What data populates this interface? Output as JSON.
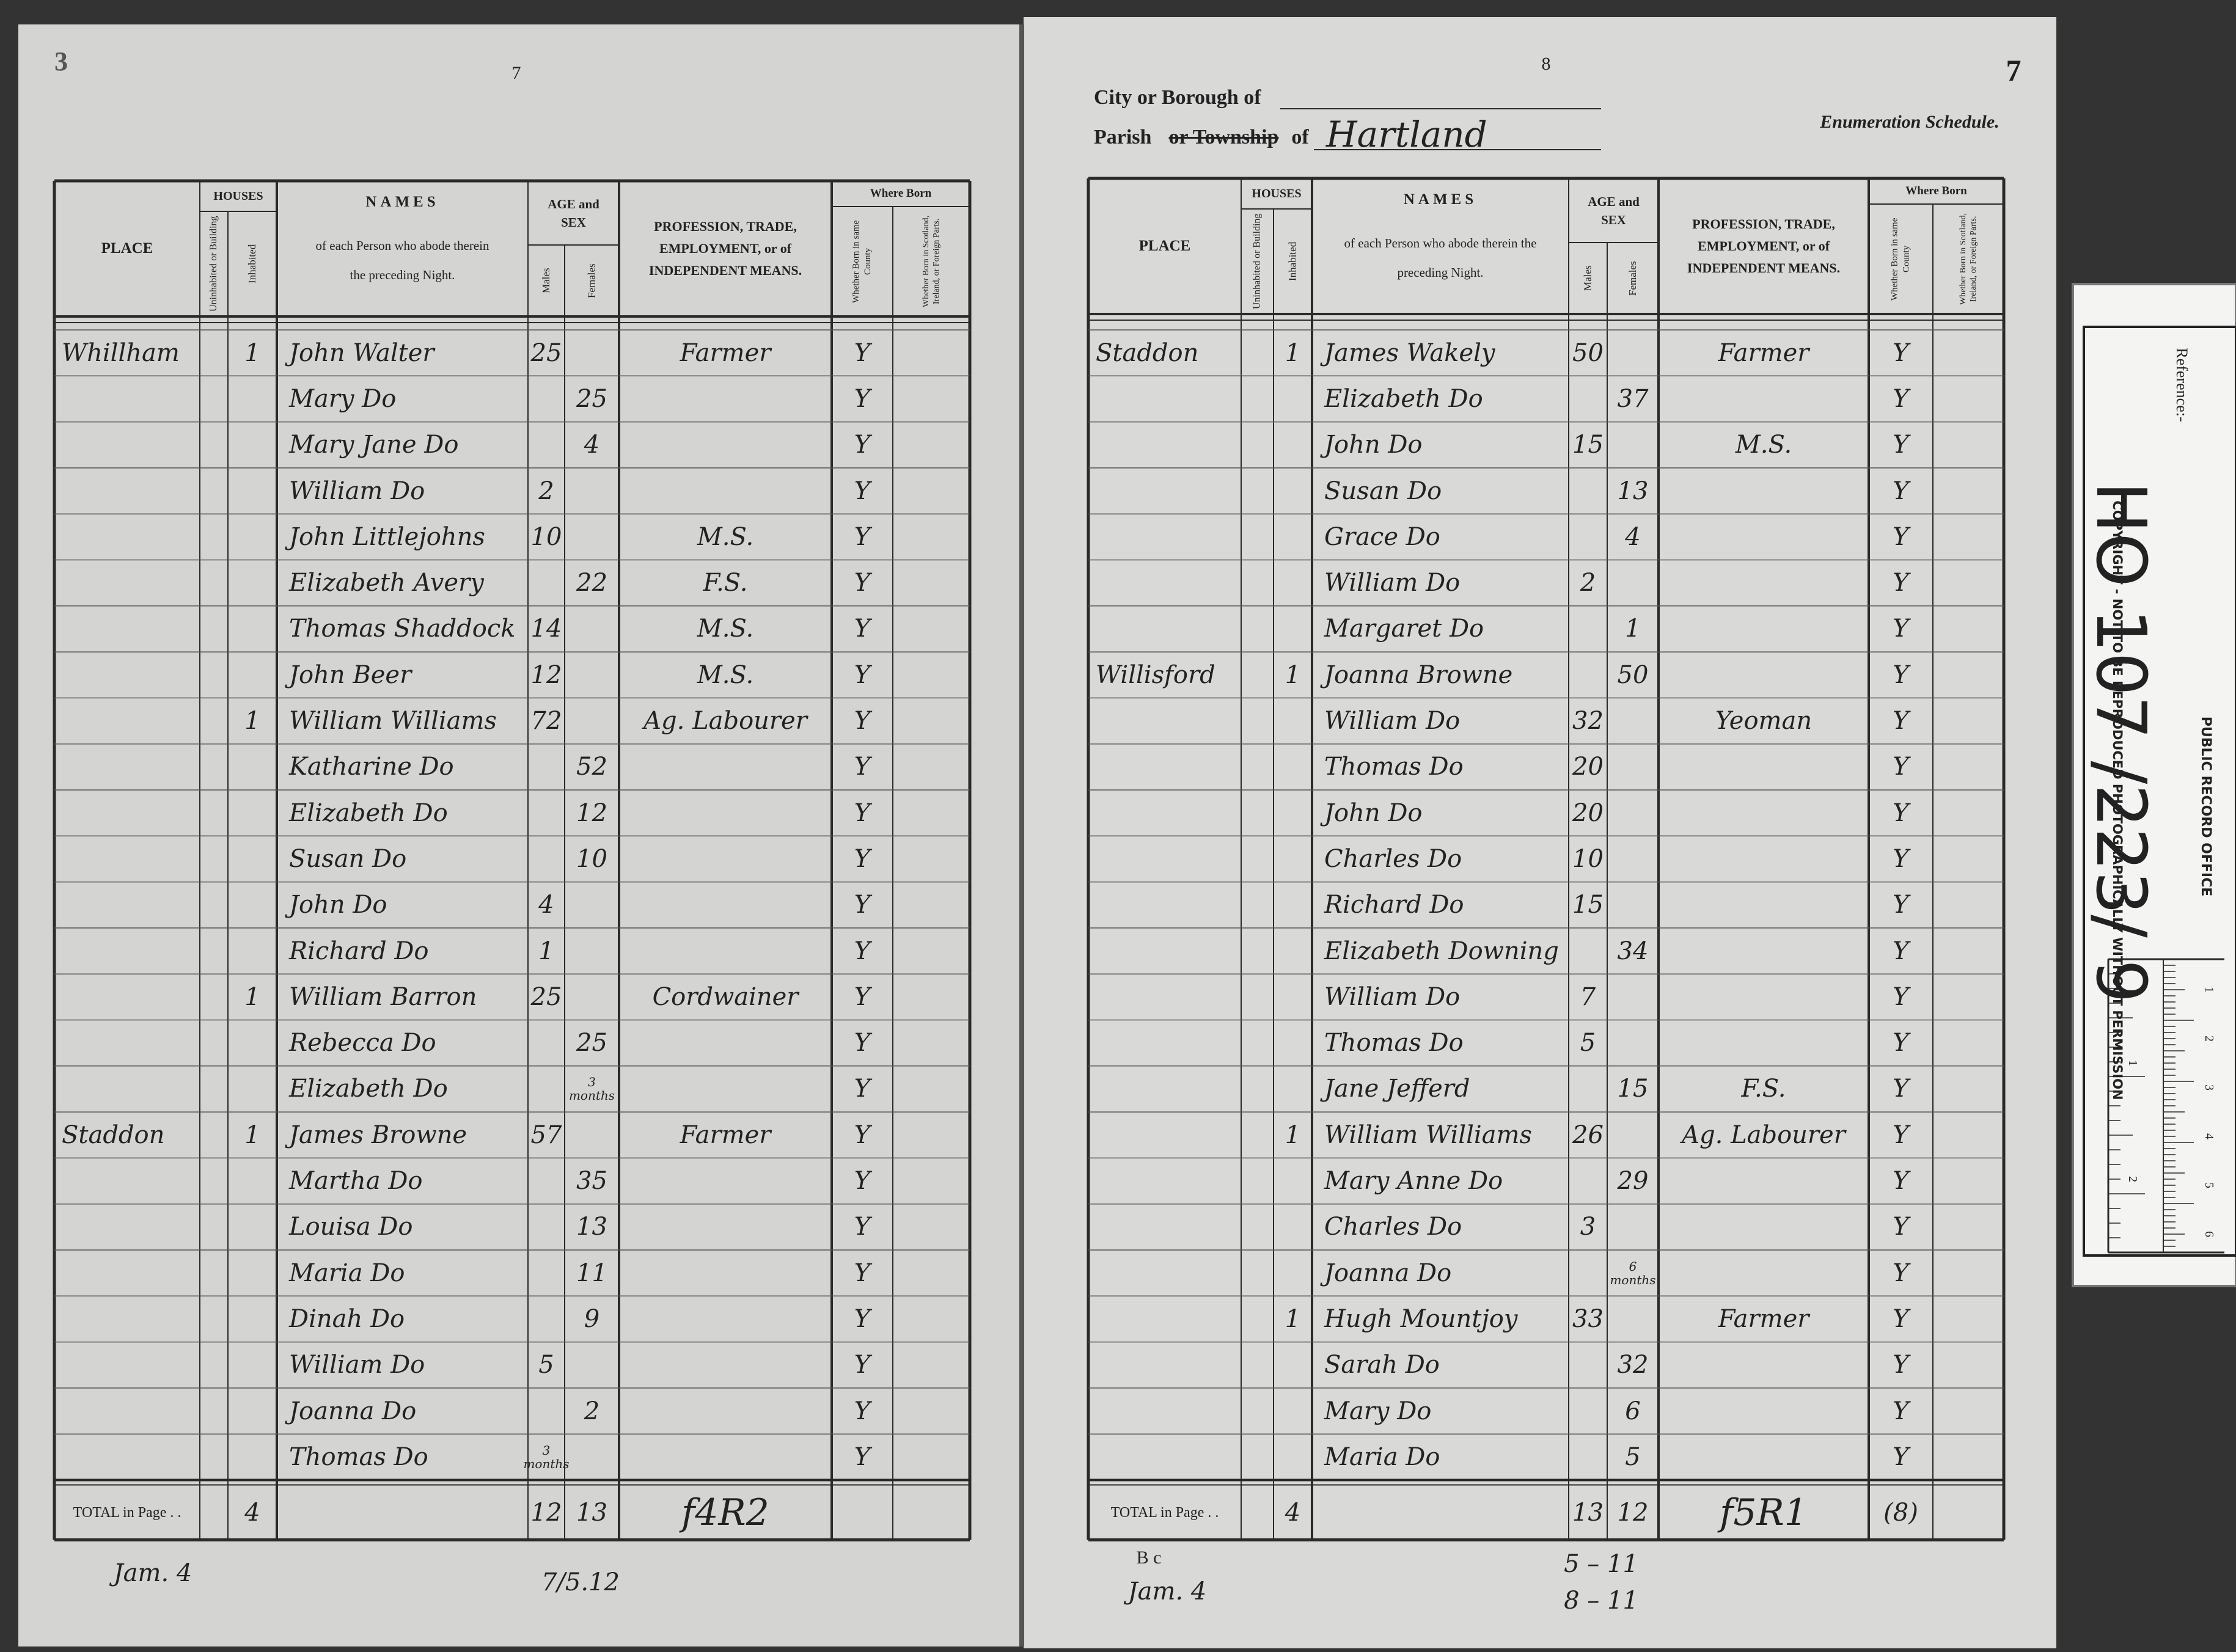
{
  "column_headers": {
    "place": "PLACE",
    "houses": "HOUSES",
    "uninhabited": "Uninhabited or Building",
    "inhabited": "Inhabited",
    "names": "NAMES",
    "names_sub": "of each Person who abode therein the preceding Night.",
    "age_sex": "AGE and SEX",
    "males": "Males",
    "females": "Females",
    "profession": "PROFESSION, TRADE, EMPLOYMENT, or of INDEPENDENT MEANS.",
    "where_born": "Where Born",
    "same_county": "Whether Born in same County",
    "foreign": "Whether Born in Scotland, Ireland, or Foreign Parts."
  },
  "total_label": "TOTAL in Page . .",
  "left_page": {
    "corner_number": "3",
    "page_number": "7",
    "rows": [
      [
        "Whillham",
        null,
        "1",
        "John Walter",
        "25",
        null,
        "Farmer",
        "Y",
        null
      ],
      [
        null,
        null,
        null,
        "Mary Do",
        null,
        "25",
        null,
        "Y",
        null
      ],
      [
        null,
        null,
        null,
        "Mary Jane Do",
        null,
        "4",
        null,
        "Y",
        null
      ],
      [
        null,
        null,
        null,
        "William Do",
        "2",
        null,
        null,
        "Y",
        null
      ],
      [
        null,
        null,
        null,
        "John Littlejohns",
        "10",
        null,
        "M.S.",
        "Y",
        null
      ],
      [
        null,
        null,
        null,
        "Elizabeth Avery",
        null,
        "22",
        "F.S.",
        "Y",
        null
      ],
      [
        null,
        null,
        null,
        "Thomas Shaddock",
        "14",
        null,
        "M.S.",
        "Y",
        null
      ],
      [
        null,
        null,
        null,
        "John Beer",
        "12",
        null,
        "M.S.",
        "Y",
        null
      ],
      [
        null,
        null,
        "1",
        "William Williams",
        "72",
        null,
        "Ag. Labourer",
        "Y",
        null
      ],
      [
        null,
        null,
        null,
        "Katharine Do",
        null,
        "52",
        null,
        "Y",
        null
      ],
      [
        null,
        null,
        null,
        "Elizabeth Do",
        null,
        "12",
        null,
        "Y",
        null
      ],
      [
        null,
        null,
        null,
        "Susan Do",
        null,
        "10",
        null,
        "Y",
        null
      ],
      [
        null,
        null,
        null,
        "John Do",
        "4",
        null,
        null,
        "Y",
        null
      ],
      [
        null,
        null,
        null,
        "Richard Do",
        "1",
        null,
        null,
        "Y",
        null
      ],
      [
        null,
        null,
        "1",
        "William Barron",
        "25",
        null,
        "Cordwainer",
        "Y",
        null
      ],
      [
        null,
        null,
        null,
        "Rebecca Do",
        null,
        "25",
        null,
        "Y",
        null
      ],
      [
        null,
        null,
        null,
        "Elizabeth Do",
        null,
        "3 months",
        null,
        "Y",
        null
      ],
      [
        "Staddon",
        null,
        "1",
        "James Browne",
        "57",
        null,
        "Farmer",
        "Y",
        null
      ],
      [
        null,
        null,
        null,
        "Martha Do",
        null,
        "35",
        null,
        "Y",
        null
      ],
      [
        null,
        null,
        null,
        "Louisa Do",
        null,
        "13",
        null,
        "Y",
        null
      ],
      [
        null,
        null,
        null,
        "Maria Do",
        null,
        "11",
        null,
        "Y",
        null
      ],
      [
        null,
        null,
        null,
        "Dinah Do",
        null,
        "9",
        null,
        "Y",
        null
      ],
      [
        null,
        null,
        null,
        "William Do",
        "5",
        null,
        null,
        "Y",
        null
      ],
      [
        null,
        null,
        null,
        "Joanna Do",
        null,
        "2",
        null,
        "Y",
        null
      ],
      [
        null,
        null,
        null,
        "Thomas Do",
        "3 months",
        null,
        null,
        "Y",
        null
      ]
    ],
    "total": {
      "inhabited": "4",
      "males": "12",
      "females": "13",
      "note": "f4R2"
    },
    "footer": {
      "left": "Jam. 4",
      "middle": "7/5.12"
    }
  },
  "right_page": {
    "page_number": "8",
    "corner_number": "7",
    "header": {
      "city_label": "City or Borough of",
      "parish_word": "Parish",
      "struck": "or Township",
      "of_word": "of",
      "parish_name": "Hartland",
      "schedule": "Enumeration Schedule."
    },
    "rows": [
      [
        "Staddon",
        null,
        "1",
        "James Wakely",
        "50",
        null,
        "Farmer",
        "Y",
        null
      ],
      [
        null,
        null,
        null,
        "Elizabeth Do",
        null,
        "37",
        null,
        "Y",
        null
      ],
      [
        null,
        null,
        null,
        "John Do",
        "15",
        null,
        "M.S.",
        "Y",
        null
      ],
      [
        null,
        null,
        null,
        "Susan Do",
        null,
        "13",
        null,
        "Y",
        null
      ],
      [
        null,
        null,
        null,
        "Grace Do",
        null,
        "4",
        null,
        "Y",
        null
      ],
      [
        null,
        null,
        null,
        "William Do",
        "2",
        null,
        null,
        "Y",
        null
      ],
      [
        null,
        null,
        null,
        "Margaret Do",
        null,
        "1",
        null,
        "Y",
        null
      ],
      [
        "Willisford",
        null,
        "1",
        "Joanna Browne",
        null,
        "50",
        null,
        "Y",
        null
      ],
      [
        null,
        null,
        null,
        "William Do",
        "32",
        null,
        "Yeoman",
        "Y",
        null
      ],
      [
        null,
        null,
        null,
        "Thomas Do",
        "20",
        null,
        null,
        "Y",
        null
      ],
      [
        null,
        null,
        null,
        "John Do",
        "20",
        null,
        null,
        "Y",
        null
      ],
      [
        null,
        null,
        null,
        "Charles Do",
        "10",
        null,
        null,
        "Y",
        null
      ],
      [
        null,
        null,
        null,
        "Richard Do",
        "15",
        null,
        null,
        "Y",
        null
      ],
      [
        null,
        null,
        null,
        "Elizabeth Downing",
        null,
        "34",
        null,
        "Y",
        null
      ],
      [
        null,
        null,
        null,
        "William Do",
        "7",
        null,
        null,
        "Y",
        null
      ],
      [
        null,
        null,
        null,
        "Thomas Do",
        "5",
        null,
        null,
        "Y",
        null
      ],
      [
        null,
        null,
        null,
        "Jane Jefferd",
        null,
        "15",
        "F.S.",
        "Y",
        null
      ],
      [
        null,
        null,
        "1",
        "William Williams",
        "26",
        null,
        "Ag. Labourer",
        "Y",
        null
      ],
      [
        null,
        null,
        null,
        "Mary Anne Do",
        null,
        "29",
        null,
        "Y",
        null
      ],
      [
        null,
        null,
        null,
        "Charles Do",
        "3",
        null,
        null,
        "Y",
        null
      ],
      [
        null,
        null,
        null,
        "Joanna Do",
        null,
        "6 months",
        null,
        "Y",
        null
      ],
      [
        null,
        null,
        "1",
        "Hugh Mountjoy",
        "33",
        null,
        "Farmer",
        "Y",
        null
      ],
      [
        null,
        null,
        null,
        "Sarah Do",
        null,
        "32",
        null,
        "Y",
        null
      ],
      [
        null,
        null,
        null,
        "Mary Do",
        null,
        "6",
        null,
        "Y",
        null
      ],
      [
        null,
        null,
        null,
        "Maria Do",
        null,
        "5",
        null,
        "Y",
        null
      ]
    ],
    "total": {
      "inhabited": "4",
      "males": "13",
      "females": "12",
      "note": "f5R1",
      "county": "(8)"
    },
    "footer": {
      "initials": "B c",
      "left": "Jam. 4",
      "sum1": "5 – 11",
      "sum2": "8 – 11"
    }
  },
  "reference_slip": {
    "reference_label": "Reference:-",
    "reference": "HO 107 /223/ 9",
    "copyright": "COPYRIGHT - NOT TO BE REPRODUCED PHOTOGRAPHICALLY WITHOUT PERMISSION",
    "office": "PUBLIC RECORD OFFICE",
    "ruler_cm": [
      "1",
      "2",
      "3",
      "4",
      "5",
      "6"
    ],
    "ruler_in": [
      "1",
      "2"
    ]
  }
}
